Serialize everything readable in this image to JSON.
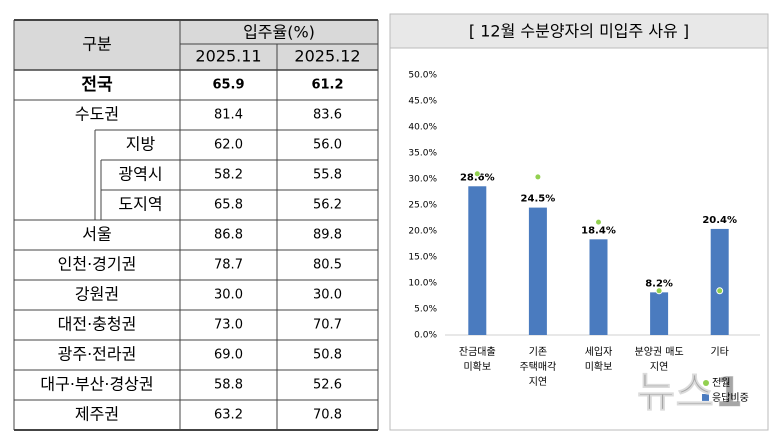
{
  "table": {
    "header": {
      "group": "구분",
      "rate": "입주율(%)",
      "periods": [
        "2025.11",
        "2025.12"
      ]
    },
    "rows": [
      [
        "전국",
        "65.9",
        "61.2"
      ],
      [
        "수도권",
        "81.4",
        "83.6"
      ],
      [
        "지방",
        "62.0",
        "56.0"
      ],
      [
        "광역시",
        "58.2",
        "55.8"
      ],
      [
        "도지역",
        "65.8",
        "56.2"
      ],
      [
        "서울",
        "86.8",
        "89.8"
      ],
      [
        "인천·경기권",
        "78.7",
        "80.5"
      ],
      [
        "강원권",
        "30.0",
        "30.0"
      ],
      [
        "대전·충청권",
        "73.0",
        "70.7"
      ],
      [
        "광주·전라권",
        "69.0",
        "50.8"
      ],
      [
        "대구·부산·경상권",
        "58.8",
        "52.6"
      ],
      [
        "제주권",
        "63.2",
        "70.8"
      ]
    ]
  },
  "chart_data": {
    "type": "bar",
    "title": "[ 12월 수분양자의 미입주 사유 ]",
    "categories": [
      [
        "잔금대출",
        "미확보"
      ],
      [
        "기존",
        "주택매각",
        "지연"
      ],
      [
        "세입자",
        "미확보"
      ],
      [
        "분양권 매도",
        "지연"
      ],
      [
        "기타"
      ]
    ],
    "series": [
      {
        "name": "응답비중",
        "color": "#4a7bbf",
        "values": [
          28.6,
          24.5,
          18.4,
          8.2,
          20.4
        ],
        "value_labels": [
          "28.6%",
          "24.5%",
          "18.4%",
          "8.2%",
          "20.4%"
        ]
      },
      {
        "name": "전월",
        "color": "#92d050",
        "values": [
          31.0,
          30.4,
          21.7,
          8.5,
          8.5
        ]
      }
    ],
    "ylim": [
      0,
      50
    ],
    "yticks": [
      {
        "value": 0,
        "label": "0.0%"
      },
      {
        "value": 5,
        "label": "5.0%"
      },
      {
        "value": 10,
        "label": "10.0%"
      },
      {
        "value": 15,
        "label": "15.0%"
      },
      {
        "value": 20,
        "label": "20.0%"
      },
      {
        "value": 25,
        "label": "25.0%"
      },
      {
        "value": 30,
        "label": "30.0%"
      },
      {
        "value": 35,
        "label": "35.0%"
      },
      {
        "value": 40,
        "label": "40.0%"
      },
      {
        "value": 45,
        "label": "45.0%"
      },
      {
        "value": 50,
        "label": "50.0%"
      }
    ]
  },
  "watermark": "뉴스1"
}
